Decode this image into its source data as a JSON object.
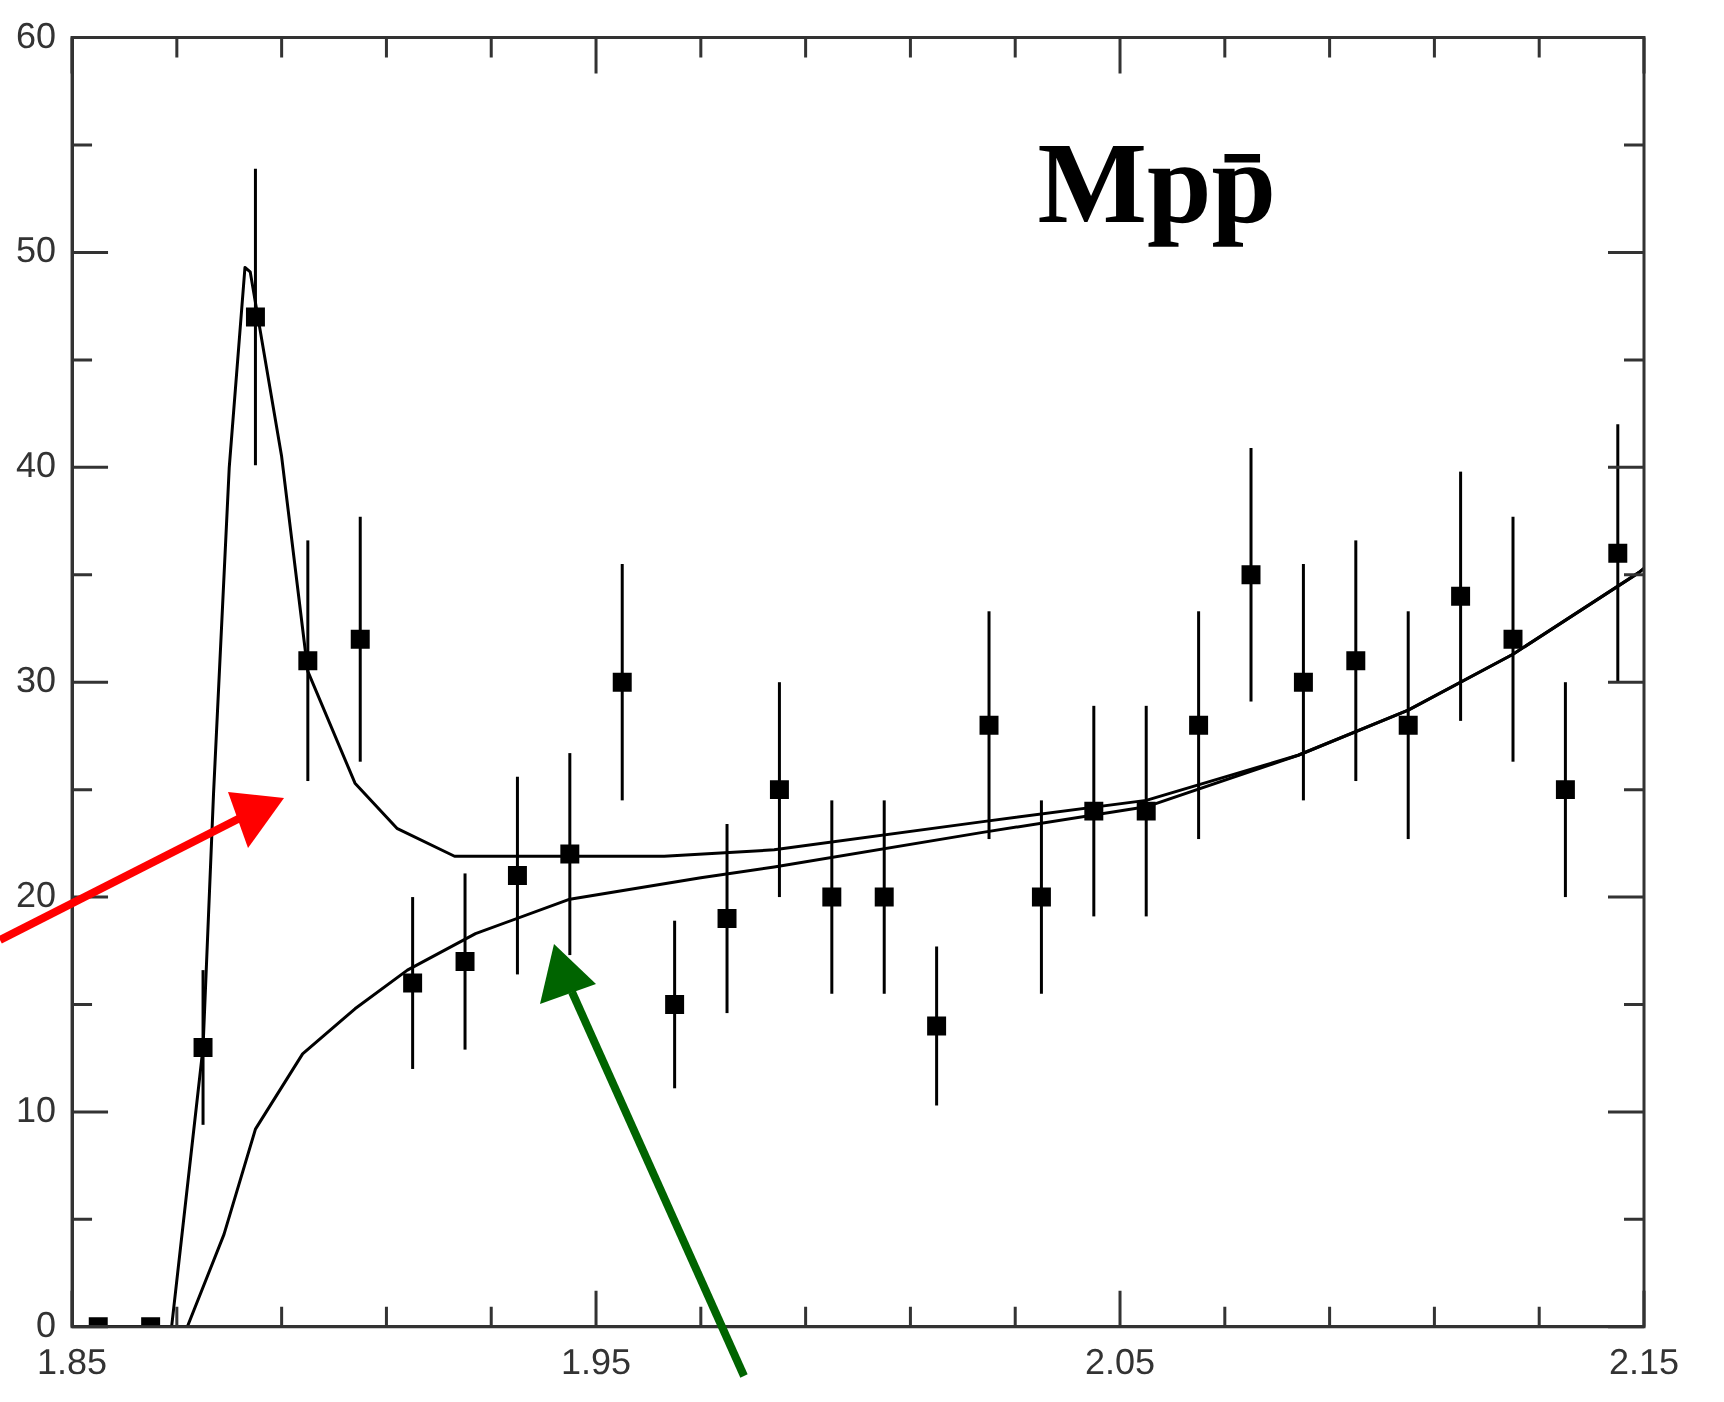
{
  "chart_data": {
    "type": "scatter",
    "title": "Mpp̄",
    "xlim": [
      1.85,
      2.15
    ],
    "ylim": [
      0,
      60
    ],
    "xticks": [
      1.85,
      {
        "value": 1.87,
        "label": null
      },
      {
        "value": 1.89,
        "label": null
      },
      {
        "value": 1.91,
        "label": null
      },
      {
        "value": 1.93,
        "label": null
      },
      1.95,
      {
        "value": 1.97,
        "label": null
      },
      {
        "value": 1.99,
        "label": null
      },
      {
        "value": 2.01,
        "label": null
      },
      {
        "value": 2.03,
        "label": null
      },
      2.05,
      {
        "value": 2.07,
        "label": null
      },
      {
        "value": 2.09,
        "label": null
      },
      {
        "value": 2.11,
        "label": null
      },
      {
        "value": 2.13,
        "label": null
      },
      2.15
    ],
    "yticks": [
      0,
      {
        "value": 5,
        "label": null
      },
      10,
      {
        "value": 15,
        "label": null
      },
      20,
      {
        "value": 25,
        "label": null
      },
      30,
      {
        "value": 35,
        "label": null
      },
      40,
      {
        "value": 45,
        "label": null
      },
      50,
      {
        "value": 55,
        "label": null
      },
      60
    ],
    "grid": false,
    "legend": false,
    "marker": "square",
    "series": [
      {
        "type": "scatter",
        "color": "#000000",
        "x": [
          1.855,
          1.865,
          1.875,
          1.885,
          1.895,
          1.905,
          1.915,
          1.925,
          1.935,
          1.945,
          1.955,
          1.965,
          1.975,
          1.985,
          1.995,
          2.005,
          2.015,
          2.025,
          2.035,
          2.045,
          2.055,
          2.065,
          2.075,
          2.085,
          2.095,
          2.105,
          2.115,
          2.125,
          2.135,
          2.145
        ],
        "values": [
          0,
          0,
          13,
          47,
          31,
          32,
          16,
          17,
          21,
          22,
          30,
          15,
          19,
          25,
          20,
          20,
          14,
          28,
          20,
          24,
          24,
          28,
          35,
          30,
          31,
          28,
          34,
          32,
          25,
          36
        ],
        "errors": [
          null,
          null,
          3.6,
          6.9,
          5.6,
          5.7,
          4,
          4.1,
          4.6,
          4.7,
          5.5,
          3.9,
          4.4,
          5,
          4.5,
          4.5,
          3.7,
          5.3,
          4.5,
          4.9,
          4.9,
          5.3,
          5.9,
          5.5,
          5.6,
          5.3,
          5.8,
          5.7,
          5,
          6
        ]
      },
      {
        "type": "line",
        "color": "#000000",
        "marker": "none",
        "x": [
          1.85,
          1.869,
          1.875,
          1.877,
          1.88,
          1.883,
          1.884,
          1.89,
          1.895,
          1.904,
          1.912,
          1.923,
          1.963,
          1.984,
          2.0235,
          2.055,
          2.084,
          2.105,
          2.125,
          2.149,
          2.15
        ],
        "values": [
          0,
          0,
          13,
          24.8,
          40,
          49.3,
          49.1,
          40.5,
          30.5,
          25.3,
          23.2,
          21.9,
          21.9,
          22.2,
          23.5,
          24.5,
          26.6,
          28.7,
          31.3,
          35.1,
          35.3
        ]
      },
      {
        "type": "line",
        "color": "#000000",
        "marker": "none",
        "x": [
          1.85,
          1.872,
          1.879,
          1.885,
          1.894,
          1.904,
          1.914,
          1.927,
          1.945,
          1.97,
          1.984,
          2.0235,
          2.055,
          2.084,
          2.105,
          2.125,
          2.149,
          2.15
        ],
        "values": [
          0,
          0,
          4.3,
          9.2,
          12.7,
          14.8,
          16.6,
          18.3,
          19.9,
          20.9,
          21.4,
          23,
          24.2,
          26.6,
          28.7,
          31.3,
          35.1,
          35.3
        ]
      }
    ]
  }
}
